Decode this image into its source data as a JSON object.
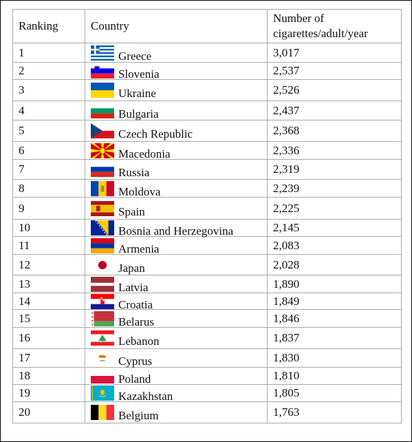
{
  "headers": {
    "ranking": "Ranking",
    "country": "Country",
    "value": "Number of cigarettes/adult/year"
  },
  "rows": [
    {
      "rank": "1",
      "country": "Greece",
      "value": "3,017",
      "flag": "greece-flag"
    },
    {
      "rank": "2",
      "country": "Slovenia",
      "value": "2,537",
      "flag": "slovenia-flag"
    },
    {
      "rank": "3",
      "country": "Ukraine",
      "value": "2,526",
      "flag": "ukraine-flag"
    },
    {
      "rank": "4",
      "country": "Bulgaria",
      "value": "2,437",
      "flag": "bulgaria-flag"
    },
    {
      "rank": "5",
      "country": "Czech Republic",
      "value": "2,368",
      "flag": "czech-republic-flag"
    },
    {
      "rank": "6",
      "country": "Macedonia",
      "value": "2,336",
      "flag": "macedonia-flag"
    },
    {
      "rank": "7",
      "country": "Russia",
      "value": "2,319",
      "flag": "russia-flag"
    },
    {
      "rank": "8",
      "country": "Moldova",
      "value": "2,239",
      "flag": "moldova-flag"
    },
    {
      "rank": "9",
      "country": "Spain",
      "value": "2,225",
      "flag": "spain-flag"
    },
    {
      "rank": "10",
      "country": "Bosnia and Herzegovina",
      "value": "2,145",
      "flag": "bosnia-flag"
    },
    {
      "rank": "11",
      "country": "Armenia",
      "value": "2,083",
      "flag": "armenia-flag"
    },
    {
      "rank": "12",
      "country": "Japan",
      "value": "2,028",
      "flag": "japan-flag"
    },
    {
      "rank": "13",
      "country": "Latvia",
      "value": "1,890",
      "flag": "latvia-flag"
    },
    {
      "rank": "14",
      "country": "Croatia",
      "value": "1,849",
      "flag": "croatia-flag"
    },
    {
      "rank": "15",
      "country": "Belarus",
      "value": "1,846",
      "flag": "belarus-flag"
    },
    {
      "rank": "16",
      "country": "Lebanon",
      "value": "1,837",
      "flag": "lebanon-flag"
    },
    {
      "rank": "17",
      "country": "Cyprus",
      "value": "1,830",
      "flag": "cyprus-flag"
    },
    {
      "rank": "18",
      "country": "Poland",
      "value": "1,810",
      "flag": "poland-flag"
    },
    {
      "rank": "19",
      "country": "Kazakhstan",
      "value": "1,805",
      "flag": "kazakhstan-flag"
    },
    {
      "rank": "20",
      "country": "Belgium",
      "value": "1,763",
      "flag": "belgium-flag"
    }
  ]
}
